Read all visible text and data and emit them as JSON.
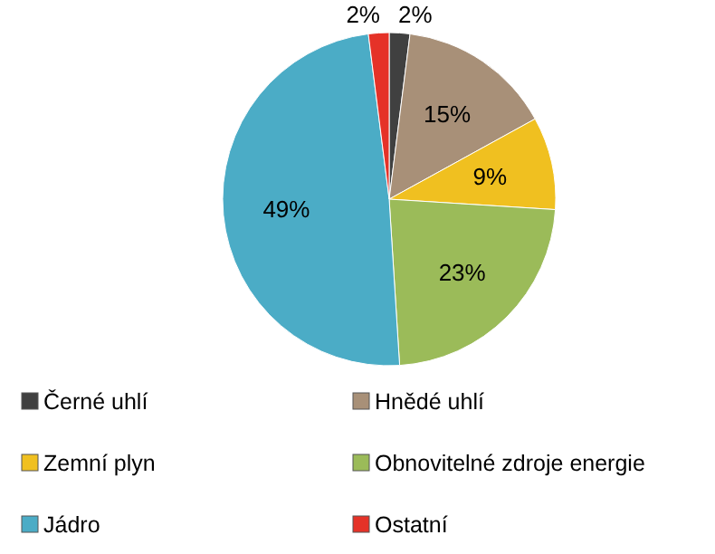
{
  "chart_data": {
    "type": "pie",
    "categories": [
      "Černé uhlí",
      "Hnědé uhlí",
      "Zemní plyn",
      "Obnovitelné zdroje energie",
      "Jádro",
      "Ostatní"
    ],
    "values": [
      2,
      15,
      9,
      23,
      49,
      2
    ],
    "value_labels": [
      "2%",
      "15%",
      "9%",
      "23%",
      "49%",
      "2%"
    ],
    "colors": [
      "#404040",
      "#a89078",
      "#f0c020",
      "#9bbb59",
      "#4bacc6",
      "#e53228"
    ],
    "legend": "bottom"
  }
}
